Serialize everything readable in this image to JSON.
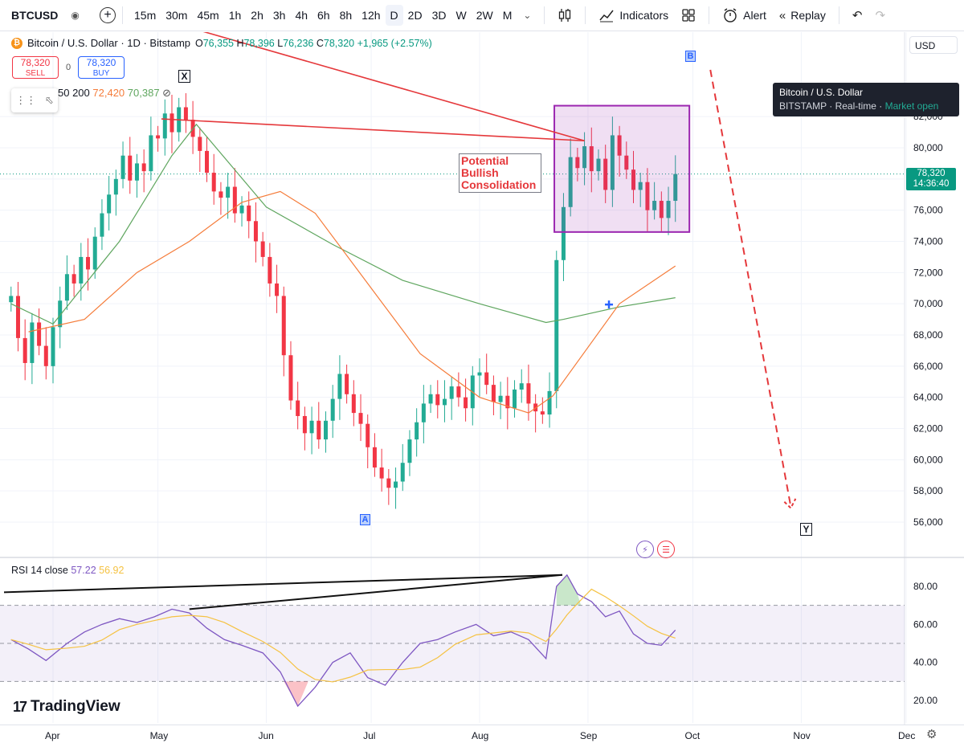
{
  "toolbar": {
    "symbol": "BTCUSD",
    "intervals": [
      "15m",
      "30m",
      "45m",
      "1h",
      "2h",
      "3h",
      "4h",
      "6h",
      "8h",
      "12h",
      "D",
      "2D",
      "3D",
      "W",
      "2W",
      "M"
    ],
    "active_interval": "D",
    "indicators_label": "Indicators",
    "alert_label": "Alert",
    "replay_label": "Replay"
  },
  "legend": {
    "title": "Bitcoin / U.S. Dollar · 1D · Bitstamp",
    "o_label": "O",
    "o_value": "76,355",
    "h_label": "H",
    "h_value": "78,396",
    "l_label": "L",
    "l_value": "76,236",
    "c_label": "C",
    "c_value": "78,320",
    "change": "+1,965 (+2.57%)",
    "sell_price": "78,320",
    "sell_label": "SELL",
    "buy_price": "78,320",
    "buy_label": "BUY",
    "spread": "0",
    "ma_params": "50 200",
    "ma50_value": "72,420",
    "ma200_value": "70,387"
  },
  "currency": "USD",
  "tooltip": {
    "title": "Bitcoin / U.S. Dollar",
    "exchange": "BITSTAMP",
    "realtime": "Real-time",
    "status": "Market open"
  },
  "price_tag": {
    "price": "78,320",
    "countdown": "14:36:40"
  },
  "annotation": "Potential Bullish Consolidation",
  "wave_labels": {
    "x": "X",
    "a": "A",
    "b": "B",
    "y": "Y"
  },
  "rsi_legend": {
    "label": "RSI 14 close",
    "rsi": "57.22",
    "ma": "56.92"
  },
  "brand": "TradingView",
  "colors": {
    "up": "#22ab94",
    "down": "#f23645",
    "ma50": "#f57c3a",
    "ma200": "#5fa65f",
    "rsi": "#7e57c2",
    "rsi_ma": "#f5c242",
    "trend": "#e5383b",
    "box": "#9c27b0"
  },
  "chart_data": {
    "type": "candlestick",
    "title": "Bitcoin / U.S. Dollar · 1D · Bitstamp",
    "price_axis": {
      "ticks": [
        "56,000",
        "58,000",
        "60,000",
        "62,000",
        "64,000",
        "66,000",
        "68,000",
        "70,000",
        "72,000",
        "74,000",
        "76,000",
        "78,000",
        "80,000",
        "82,000"
      ],
      "range": [
        54500,
        84500
      ]
    },
    "time_axis": {
      "ticks": [
        "Apr",
        "May",
        "Jun",
        "Jul",
        "Aug",
        "Sep",
        "Oct",
        "Nov",
        "Dec"
      ]
    },
    "closes_by_date": [
      [
        "03-20",
        70500
      ],
      [
        "03-22",
        67800
      ],
      [
        "03-24",
        66200
      ],
      [
        "03-26",
        68800
      ],
      [
        "03-28",
        67300
      ],
      [
        "03-30",
        66000
      ],
      [
        "04-01",
        68500
      ],
      [
        "04-03",
        70200
      ],
      [
        "04-05",
        71900
      ],
      [
        "04-07",
        71300
      ],
      [
        "04-09",
        73000
      ],
      [
        "04-11",
        72200
      ],
      [
        "04-13",
        74300
      ],
      [
        "04-15",
        75800
      ],
      [
        "04-17",
        77000
      ],
      [
        "04-19",
        78000
      ],
      [
        "04-21",
        79500
      ],
      [
        "04-23",
        77900
      ],
      [
        "04-25",
        79000
      ],
      [
        "04-27",
        78500
      ],
      [
        "04-29",
        80800
      ],
      [
        "05-01",
        80600
      ],
      [
        "05-03",
        82200
      ],
      [
        "05-05",
        81000
      ],
      [
        "05-07",
        82600
      ],
      [
        "05-09",
        81800
      ],
      [
        "05-11",
        80700
      ],
      [
        "05-13",
        79800
      ],
      [
        "05-15",
        78400
      ],
      [
        "05-17",
        77200
      ],
      [
        "05-19",
        76800
      ],
      [
        "05-21",
        77500
      ],
      [
        "05-23",
        75800
      ],
      [
        "05-25",
        76300
      ],
      [
        "05-27",
        75300
      ],
      [
        "05-29",
        74000
      ],
      [
        "05-31",
        73000
      ],
      [
        "06-02",
        71300
      ],
      [
        "06-04",
        70500
      ],
      [
        "06-06",
        66700
      ],
      [
        "06-08",
        63800
      ],
      [
        "06-10",
        62800
      ],
      [
        "06-12",
        61700
      ],
      [
        "06-14",
        62500
      ],
      [
        "06-16",
        61300
      ],
      [
        "06-18",
        62500
      ],
      [
        "06-20",
        63900
      ],
      [
        "06-22",
        65500
      ],
      [
        "06-24",
        64200
      ],
      [
        "06-26",
        63000
      ],
      [
        "06-28",
        62300
      ],
      [
        "06-30",
        60800
      ],
      [
        "07-02",
        59500
      ],
      [
        "07-04",
        58800
      ],
      [
        "07-06",
        58200
      ],
      [
        "07-08",
        58600
      ],
      [
        "07-10",
        59800
      ],
      [
        "07-12",
        61300
      ],
      [
        "07-14",
        62400
      ],
      [
        "07-16",
        63600
      ],
      [
        "07-18",
        64200
      ],
      [
        "07-20",
        63500
      ],
      [
        "07-22",
        63900
      ],
      [
        "07-24",
        64700
      ],
      [
        "07-26",
        64000
      ],
      [
        "07-28",
        63300
      ],
      [
        "07-30",
        65400
      ],
      [
        "08-01",
        65600
      ],
      [
        "08-03",
        64800
      ],
      [
        "08-05",
        63700
      ],
      [
        "08-07",
        64100
      ],
      [
        "08-09",
        63300
      ],
      [
        "08-11",
        64500
      ],
      [
        "08-13",
        64900
      ],
      [
        "08-15",
        63600
      ],
      [
        "08-17",
        63100
      ],
      [
        "08-19",
        62900
      ],
      [
        "08-21",
        64400
      ],
      [
        "08-23",
        72800
      ],
      [
        "08-25",
        76200
      ],
      [
        "08-27",
        79400
      ],
      [
        "08-29",
        78700
      ],
      [
        "08-31",
        80100
      ],
      [
        "09-02",
        78500
      ],
      [
        "09-04",
        79300
      ],
      [
        "09-06",
        77300
      ],
      [
        "09-08",
        80800
      ],
      [
        "09-10",
        79500
      ],
      [
        "09-12",
        78600
      ],
      [
        "09-14",
        77300
      ],
      [
        "09-16",
        77800
      ],
      [
        "09-18",
        76000
      ],
      [
        "09-20",
        76600
      ],
      [
        "09-22",
        75500
      ],
      [
        "09-24",
        76600
      ],
      [
        "09-26",
        78320
      ]
    ],
    "moving_averages": [
      {
        "name": "MA 50",
        "last": 72420
      },
      {
        "name": "MA 200",
        "last": 70387
      }
    ],
    "rsi": {
      "name": "RSI 14 close",
      "last": 57.22,
      "ma_last": 56.92,
      "ticks": [
        "20.00",
        "40.00",
        "60.00",
        "80.00"
      ],
      "range": [
        14,
        92
      ],
      "bands": [
        30,
        50,
        70
      ],
      "series": [
        [
          "03-20",
          52
        ],
        [
          "03-25",
          47
        ],
        [
          "03-30",
          41
        ],
        [
          "04-05",
          50
        ],
        [
          "04-10",
          56
        ],
        [
          "04-15",
          60
        ],
        [
          "04-20",
          63
        ],
        [
          "04-25",
          61
        ],
        [
          "04-30",
          64
        ],
        [
          "05-05",
          68
        ],
        [
          "05-10",
          66
        ],
        [
          "05-15",
          58
        ],
        [
          "05-20",
          52
        ],
        [
          "05-25",
          49
        ],
        [
          "05-31",
          45
        ],
        [
          "06-05",
          35
        ],
        [
          "06-10",
          17
        ],
        [
          "06-15",
          27
        ],
        [
          "06-20",
          40
        ],
        [
          "06-25",
          45
        ],
        [
          "06-30",
          32
        ],
        [
          "07-05",
          28
        ],
        [
          "07-10",
          40
        ],
        [
          "07-15",
          50
        ],
        [
          "07-20",
          52
        ],
        [
          "07-25",
          56
        ],
        [
          "07-31",
          60
        ],
        [
          "08-05",
          54
        ],
        [
          "08-10",
          56
        ],
        [
          "08-15",
          52
        ],
        [
          "08-20",
          42
        ],
        [
          "08-23",
          80
        ],
        [
          "08-26",
          86
        ],
        [
          "08-29",
          76
        ],
        [
          "09-02",
          72
        ],
        [
          "09-06",
          64
        ],
        [
          "09-10",
          67
        ],
        [
          "09-14",
          55
        ],
        [
          "09-18",
          50
        ],
        [
          "09-22",
          49
        ],
        [
          "09-26",
          57
        ]
      ]
    }
  }
}
